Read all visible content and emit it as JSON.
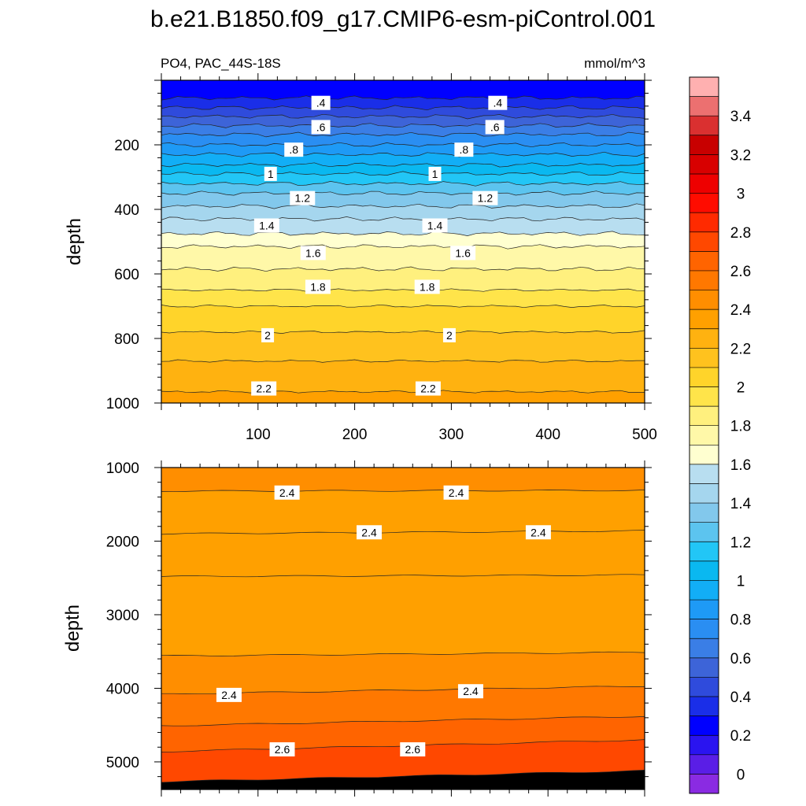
{
  "figure": {
    "title": "b.e21.B1850.f09_g17.CMIP6-esm-piControl.001",
    "left_label": "PO4, PAC_44S-18S",
    "right_label": "mmol/m^3"
  },
  "chart_data": [
    {
      "type": "contour",
      "panel": "upper",
      "title": "PO4, PAC_44S-18S",
      "units": "mmol/m^3",
      "ylabel": "depth",
      "xlabel": "",
      "xlim": [
        0,
        500
      ],
      "ylim": [
        1000,
        0
      ],
      "x_ticks": [
        "100",
        "200",
        "300",
        "400",
        "500"
      ],
      "y_ticks": [
        "200",
        "400",
        "600",
        "800",
        "1000"
      ],
      "contour_depths": [
        {
          "level": 0.3,
          "depth": 55
        },
        {
          "level": 0.4,
          "depth": 85
        },
        {
          "level": 0.5,
          "depth": 112
        },
        {
          "level": 0.6,
          "depth": 140
        },
        {
          "level": 0.7,
          "depth": 168
        },
        {
          "level": 0.8,
          "depth": 200
        },
        {
          "level": 0.9,
          "depth": 230
        },
        {
          "level": 1.0,
          "depth": 262
        },
        {
          "level": 1.1,
          "depth": 290
        },
        {
          "level": 1.2,
          "depth": 320
        },
        {
          "level": 1.3,
          "depth": 350
        },
        {
          "level": 1.4,
          "depth": 390
        },
        {
          "level": 1.5,
          "depth": 430
        },
        {
          "level": 1.6,
          "depth": 475
        },
        {
          "level": 1.7,
          "depth": 515
        },
        {
          "level": 1.8,
          "depth": 585
        },
        {
          "level": 1.9,
          "depth": 650
        },
        {
          "level": 2.0,
          "depth": 700
        },
        {
          "level": 2.1,
          "depth": 780
        },
        {
          "level": 2.2,
          "depth": 870
        },
        {
          "level": 2.3,
          "depth": 965
        }
      ],
      "labels": [
        {
          "text": ".4",
          "x": 165,
          "depth": 70
        },
        {
          "text": ".4",
          "x": 348,
          "depth": 70
        },
        {
          "text": ".6",
          "x": 165,
          "depth": 145
        },
        {
          "text": ".6",
          "x": 345,
          "depth": 145
        },
        {
          "text": ".8",
          "x": 137,
          "depth": 215
        },
        {
          "text": ".8",
          "x": 313,
          "depth": 215
        },
        {
          "text": "1",
          "x": 113,
          "depth": 290
        },
        {
          "text": "1",
          "x": 283,
          "depth": 290
        },
        {
          "text": "1.2",
          "x": 146,
          "depth": 365
        },
        {
          "text": "1.2",
          "x": 335,
          "depth": 365
        },
        {
          "text": "1.4",
          "x": 109,
          "depth": 450
        },
        {
          "text": "1.4",
          "x": 283,
          "depth": 450
        },
        {
          "text": "1.6",
          "x": 157,
          "depth": 535
        },
        {
          "text": "1.6",
          "x": 312,
          "depth": 535
        },
        {
          "text": "1.8",
          "x": 162,
          "depth": 640
        },
        {
          "text": "1.8",
          "x": 275,
          "depth": 640
        },
        {
          "text": "2",
          "x": 110,
          "depth": 790
        },
        {
          "text": "2",
          "x": 298,
          "depth": 790
        },
        {
          "text": "2.2",
          "x": 106,
          "depth": 955
        },
        {
          "text": "2.2",
          "x": 276,
          "depth": 955
        }
      ]
    },
    {
      "type": "contour",
      "panel": "lower",
      "ylabel": "depth",
      "xlabel": "",
      "xlim": [
        0,
        500
      ],
      "ylim": [
        5375,
        1000
      ],
      "y_ticks": [
        "1000",
        "2000",
        "3000",
        "4000",
        "5000"
      ],
      "contour_depths": [
        {
          "level": 2.4,
          "depth_left": 1320,
          "depth_right": 1310
        },
        {
          "level": 2.4,
          "depth_left": 1900,
          "depth_right": 1860
        },
        {
          "level": 2.3,
          "depth_left": 2480,
          "depth_right": 2460
        },
        {
          "level": 2.3,
          "depth_left": 3560,
          "depth_right": 3510
        },
        {
          "level": 2.4,
          "depth_left": 4080,
          "depth_right": 3970
        },
        {
          "level": 2.5,
          "depth_left": 4510,
          "depth_right": 4380
        },
        {
          "level": 2.6,
          "depth_left": 4860,
          "depth_right": 4700
        },
        {
          "level": 2.7,
          "depth_left": 5270,
          "depth_right": 5120
        }
      ],
      "fill_levels": [
        2.45,
        2.35,
        2.3,
        2.35,
        2.45,
        2.55,
        2.65,
        2.75
      ],
      "labels": [
        {
          "text": "2.4",
          "x": 130,
          "depth": 1340
        },
        {
          "text": "2.4",
          "x": 305,
          "depth": 1340
        },
        {
          "text": "2.4",
          "x": 215,
          "depth": 1880
        },
        {
          "text": "2.4",
          "x": 390,
          "depth": 1880
        },
        {
          "text": "2.4",
          "x": 70,
          "depth": 4090
        },
        {
          "text": "2.4",
          "x": 320,
          "depth": 4040
        },
        {
          "text": "2.6",
          "x": 125,
          "depth": 4830
        },
        {
          "text": "2.6",
          "x": 260,
          "depth": 4830
        }
      ]
    }
  ],
  "colorbar": {
    "min": -0.1,
    "max": 3.6,
    "step": 0.1,
    "tick_labels": [
      "0",
      "0.2",
      "0.4",
      "0.6",
      "0.8",
      "1",
      "1.2",
      "1.4",
      "1.6",
      "1.8",
      "2",
      "2.2",
      "2.4",
      "2.6",
      "2.8",
      "3",
      "3.2",
      "3.4"
    ],
    "tick_values": [
      0,
      0.2,
      0.4,
      0.6,
      0.8,
      1.0,
      1.2,
      1.4,
      1.6,
      1.8,
      2.0,
      2.2,
      2.4,
      2.6,
      2.8,
      3.0,
      3.2,
      3.4
    ],
    "colors": [
      "#8a2be2",
      "#5a1ee6",
      "#2a14f0",
      "#0000ff",
      "#1a2ee8",
      "#2f4bdc",
      "#3d64d8",
      "#3a7ee6",
      "#2a8ef2",
      "#1e9af6",
      "#12aef6",
      "#0ab8f0",
      "#22c6f6",
      "#5cc4ef",
      "#82c8ec",
      "#a5d6ee",
      "#b8def0",
      "#ffffd0",
      "#fff8a8",
      "#fff07e",
      "#ffe44a",
      "#ffd42a",
      "#ffc21e",
      "#ffb210",
      "#ffa000",
      "#ff8e00",
      "#ff7800",
      "#ff6400",
      "#ff4800",
      "#ff2a00",
      "#ff0c00",
      "#ee0000",
      "#d80000",
      "#c80000",
      "#da3030",
      "#ec7070",
      "#ffb0b0"
    ]
  }
}
